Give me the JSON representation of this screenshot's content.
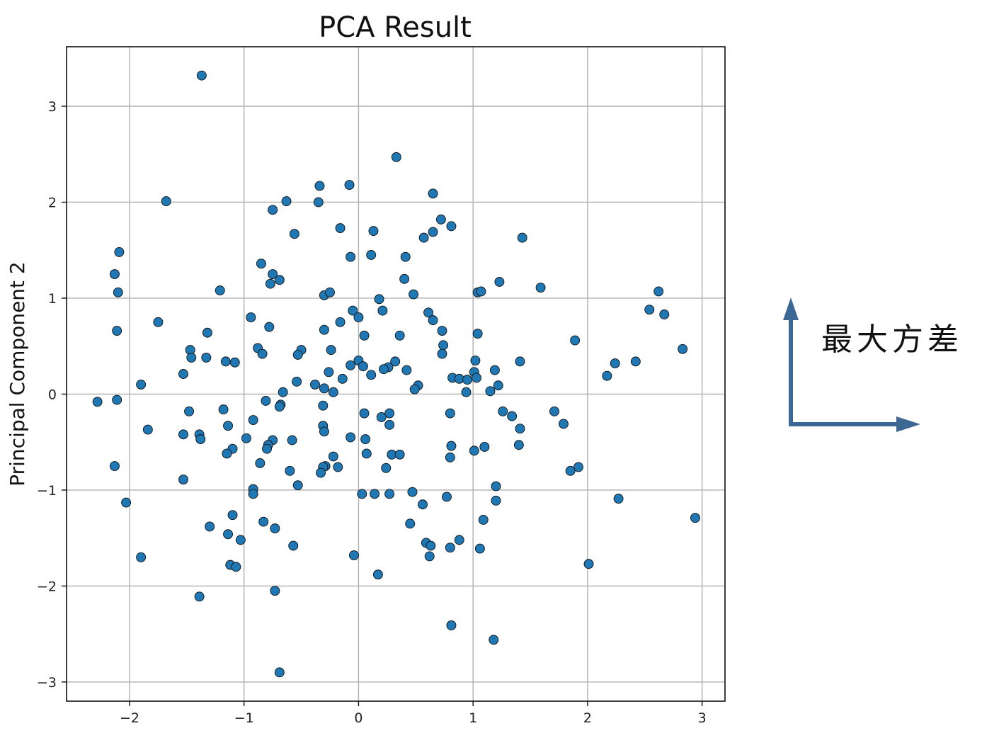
{
  "chart_data": {
    "type": "scatter",
    "title": "PCA Result",
    "xlabel": "",
    "ylabel": "Principal Component 2",
    "xlim": [
      -2.55,
      3.2
    ],
    "ylim": [
      -3.2,
      3.62
    ],
    "xticks": [
      -2,
      -1,
      0,
      1,
      2,
      3
    ],
    "yticks": [
      -3,
      -2,
      -1,
      0,
      1,
      2,
      3
    ],
    "xtick_labels": [
      "−2",
      "−1",
      "0",
      "1",
      "2",
      "3"
    ],
    "ytick_labels": [
      "−3",
      "−2",
      "−1",
      "0",
      "1",
      "2",
      "3"
    ],
    "grid": true,
    "marker_color": "#1f77b4",
    "points": [
      [
        -1.37,
        3.32
      ],
      [
        0.33,
        2.47
      ],
      [
        -1.68,
        2.01
      ],
      [
        -0.34,
        2.17
      ],
      [
        -0.08,
        2.18
      ],
      [
        0.65,
        2.09
      ],
      [
        -0.63,
        2.01
      ],
      [
        -0.35,
        2.0
      ],
      [
        -0.75,
        1.92
      ],
      [
        0.72,
        1.82
      ],
      [
        0.81,
        1.75
      ],
      [
        -0.16,
        1.73
      ],
      [
        0.13,
        1.7
      ],
      [
        0.65,
        1.69
      ],
      [
        -0.56,
        1.67
      ],
      [
        0.57,
        1.63
      ],
      [
        1.43,
        1.63
      ],
      [
        -2.09,
        1.48
      ],
      [
        0.11,
        1.45
      ],
      [
        -0.07,
        1.43
      ],
      [
        0.41,
        1.43
      ],
      [
        -0.85,
        1.36
      ],
      [
        -2.13,
        1.25
      ],
      [
        -0.75,
        1.25
      ],
      [
        -0.69,
        1.19
      ],
      [
        0.4,
        1.2
      ],
      [
        -0.77,
        1.15
      ],
      [
        1.23,
        1.17
      ],
      [
        1.59,
        1.11
      ],
      [
        -1.21,
        1.08
      ],
      [
        -2.1,
        1.06
      ],
      [
        -0.3,
        1.03
      ],
      [
        -0.25,
        1.06
      ],
      [
        0.48,
        1.04
      ],
      [
        1.04,
        1.06
      ],
      [
        1.07,
        1.07
      ],
      [
        2.62,
        1.07
      ],
      [
        0.18,
        0.99
      ],
      [
        -0.05,
        0.87
      ],
      [
        0.21,
        0.87
      ],
      [
        0.61,
        0.85
      ],
      [
        2.54,
        0.88
      ],
      [
        2.67,
        0.83
      ],
      [
        -0.94,
        0.8
      ],
      [
        0.0,
        0.8
      ],
      [
        0.65,
        0.77
      ],
      [
        -1.75,
        0.75
      ],
      [
        -0.16,
        0.75
      ],
      [
        -0.78,
        0.7
      ],
      [
        -0.3,
        0.67
      ],
      [
        0.73,
        0.66
      ],
      [
        -2.11,
        0.66
      ],
      [
        -1.32,
        0.64
      ],
      [
        1.04,
        0.63
      ],
      [
        0.05,
        0.61
      ],
      [
        0.36,
        0.61
      ],
      [
        1.89,
        0.56
      ],
      [
        0.74,
        0.51
      ],
      [
        2.83,
        0.47
      ],
      [
        -0.88,
        0.48
      ],
      [
        -0.24,
        0.46
      ],
      [
        -0.5,
        0.46
      ],
      [
        -1.47,
        0.46
      ],
      [
        -0.84,
        0.42
      ],
      [
        -0.53,
        0.41
      ],
      [
        0.73,
        0.42
      ],
      [
        -1.46,
        0.38
      ],
      [
        -1.33,
        0.38
      ],
      [
        -1.16,
        0.34
      ],
      [
        -1.08,
        0.33
      ],
      [
        0.32,
        0.34
      ],
      [
        1.02,
        0.35
      ],
      [
        1.41,
        0.34
      ],
      [
        2.24,
        0.32
      ],
      [
        2.42,
        0.34
      ],
      [
        -0.07,
        0.3
      ],
      [
        0.0,
        0.35
      ],
      [
        0.04,
        0.29
      ],
      [
        0.26,
        0.28
      ],
      [
        0.22,
        0.26
      ],
      [
        0.42,
        0.25
      ],
      [
        1.19,
        0.25
      ],
      [
        -0.26,
        0.23
      ],
      [
        1.01,
        0.23
      ],
      [
        -1.53,
        0.21
      ],
      [
        0.11,
        0.2
      ],
      [
        1.03,
        0.17
      ],
      [
        2.17,
        0.19
      ],
      [
        0.82,
        0.17
      ],
      [
        0.88,
        0.16
      ],
      [
        0.95,
        0.15
      ],
      [
        -0.14,
        0.16
      ],
      [
        -0.54,
        0.13
      ],
      [
        -1.9,
        0.1
      ],
      [
        -0.38,
        0.1
      ],
      [
        1.22,
        0.09
      ],
      [
        0.52,
        0.09
      ],
      [
        -0.3,
        0.06
      ],
      [
        0.49,
        0.05
      ],
      [
        1.15,
        0.03
      ],
      [
        0.94,
        0.02
      ],
      [
        -0.22,
        0.02
      ],
      [
        -0.66,
        0.02
      ],
      [
        -2.28,
        -0.08
      ],
      [
        -2.11,
        -0.06
      ],
      [
        -0.81,
        -0.07
      ],
      [
        -0.68,
        -0.11
      ],
      [
        -0.69,
        -0.13
      ],
      [
        -0.31,
        -0.12
      ],
      [
        -1.48,
        -0.18
      ],
      [
        -1.18,
        -0.16
      ],
      [
        0.05,
        -0.2
      ],
      [
        0.27,
        -0.2
      ],
      [
        0.8,
        -0.2
      ],
      [
        1.26,
        -0.18
      ],
      [
        1.71,
        -0.18
      ],
      [
        0.2,
        -0.24
      ],
      [
        1.34,
        -0.23
      ],
      [
        -0.92,
        -0.27
      ],
      [
        0.27,
        -0.32
      ],
      [
        1.79,
        -0.31
      ],
      [
        -1.14,
        -0.33
      ],
      [
        -0.31,
        -0.33
      ],
      [
        -1.84,
        -0.37
      ],
      [
        -0.3,
        -0.39
      ],
      [
        1.41,
        -0.36
      ],
      [
        -1.53,
        -0.42
      ],
      [
        -1.39,
        -0.42
      ],
      [
        -1.38,
        -0.47
      ],
      [
        -0.98,
        -0.46
      ],
      [
        -0.75,
        -0.48
      ],
      [
        -0.58,
        -0.48
      ],
      [
        0.06,
        -0.47
      ],
      [
        -0.07,
        -0.45
      ],
      [
        -0.79,
        -0.53
      ],
      [
        -0.8,
        -0.57
      ],
      [
        1.4,
        -0.53
      ],
      [
        0.81,
        -0.54
      ],
      [
        1.1,
        -0.55
      ],
      [
        -1.1,
        -0.57
      ],
      [
        1.01,
        -0.59
      ],
      [
        -1.15,
        -0.62
      ],
      [
        0.07,
        -0.62
      ],
      [
        0.29,
        -0.63
      ],
      [
        0.36,
        -0.63
      ],
      [
        -0.22,
        -0.65
      ],
      [
        0.8,
        -0.66
      ],
      [
        -0.86,
        -0.72
      ],
      [
        -0.29,
        -0.75
      ],
      [
        -0.31,
        -0.76
      ],
      [
        -0.18,
        -0.76
      ],
      [
        0.24,
        -0.77
      ],
      [
        1.92,
        -0.76
      ],
      [
        -2.13,
        -0.75
      ],
      [
        1.85,
        -0.8
      ],
      [
        -0.6,
        -0.8
      ],
      [
        -0.33,
        -0.82
      ],
      [
        -1.53,
        -0.89
      ],
      [
        -0.53,
        -0.95
      ],
      [
        1.2,
        -0.96
      ],
      [
        -0.92,
        -0.99
      ],
      [
        -0.92,
        -1.04
      ],
      [
        0.47,
        -1.02
      ],
      [
        0.03,
        -1.04
      ],
      [
        0.14,
        -1.04
      ],
      [
        0.27,
        -1.04
      ],
      [
        0.77,
        -1.07
      ],
      [
        -2.03,
        -1.13
      ],
      [
        1.2,
        -1.11
      ],
      [
        2.27,
        -1.09
      ],
      [
        0.56,
        -1.15
      ],
      [
        -1.1,
        -1.26
      ],
      [
        2.94,
        -1.29
      ],
      [
        -0.83,
        -1.33
      ],
      [
        1.09,
        -1.31
      ],
      [
        0.45,
        -1.35
      ],
      [
        -1.3,
        -1.38
      ],
      [
        -0.73,
        -1.4
      ],
      [
        -1.14,
        -1.46
      ],
      [
        -1.03,
        -1.52
      ],
      [
        0.88,
        -1.52
      ],
      [
        0.59,
        -1.55
      ],
      [
        0.63,
        -1.58
      ],
      [
        -0.57,
        -1.58
      ],
      [
        0.8,
        -1.6
      ],
      [
        1.06,
        -1.61
      ],
      [
        -0.04,
        -1.68
      ],
      [
        0.62,
        -1.69
      ],
      [
        -1.9,
        -1.7
      ],
      [
        -1.12,
        -1.78
      ],
      [
        -1.07,
        -1.8
      ],
      [
        2.01,
        -1.77
      ],
      [
        0.17,
        -1.88
      ],
      [
        -0.73,
        -2.05
      ],
      [
        -1.39,
        -2.11
      ],
      [
        0.81,
        -2.41
      ],
      [
        1.18,
        -2.56
      ],
      [
        -0.69,
        -2.9
      ]
    ]
  },
  "annotation": {
    "text": "最大方差",
    "arrow_color": "#3d6894"
  }
}
